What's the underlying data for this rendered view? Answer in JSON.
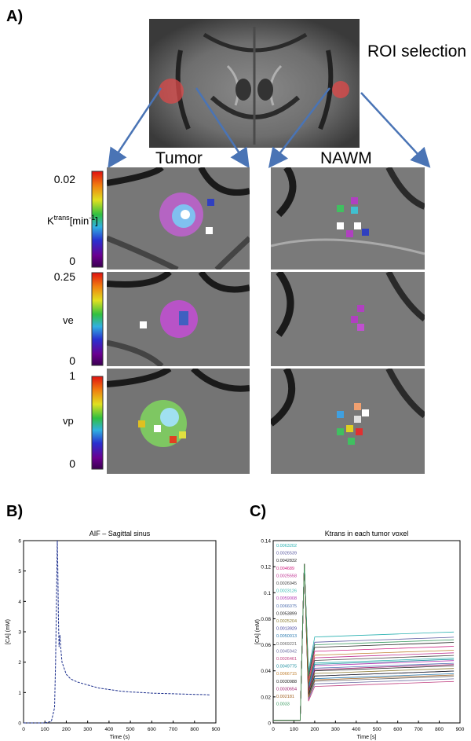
{
  "panel_labels": {
    "a": "A)",
    "b": "B)",
    "c": "C)"
  },
  "roi_label": "ROI selection",
  "col_headers": {
    "tumor": "Tumor",
    "nawm": "NAWM"
  },
  "colorbars": [
    {
      "top": "0.02",
      "bottom": "0",
      "label_main": "K",
      "label_sup": "trans",
      "label_unit": "[min",
      "label_unit_sup": "-1",
      "label_close": "]"
    },
    {
      "top": "0.25",
      "bottom": "0",
      "label_main": "ve"
    },
    {
      "top": "1",
      "bottom": "0",
      "label_main": "vp"
    }
  ],
  "colors": {
    "arrow": "#4a74b5",
    "roi": "#d94a4a",
    "aif_line": "#1a2d8c"
  },
  "chart_data": [
    {
      "type": "line",
      "title": "AIF – Sagittal sinus",
      "xlabel": "Time (s)",
      "ylabel": "[CA] (mM)",
      "xlim": [
        0,
        900
      ],
      "ylim": [
        0,
        6
      ],
      "xticks": [
        "0",
        "100",
        "200",
        "300",
        "400",
        "500",
        "600",
        "700",
        "800",
        "900"
      ],
      "yticks": [
        "0",
        "1",
        "2",
        "3",
        "4",
        "5",
        "6"
      ],
      "series": [
        {
          "x": [
            0,
            50,
            100,
            130,
            145,
            150,
            155,
            158,
            160,
            163,
            166,
            170,
            175,
            180,
            190,
            200,
            220,
            250,
            300,
            350,
            400,
            450,
            500,
            550,
            600,
            650,
            700,
            750,
            800,
            850,
            870
          ],
          "y": [
            0,
            0,
            0,
            0.05,
            0.5,
            2,
            4.5,
            6,
            5.2,
            3.5,
            2.5,
            2.9,
            2.4,
            2.0,
            1.8,
            1.6,
            1.45,
            1.35,
            1.25,
            1.15,
            1.1,
            1.05,
            1.02,
            1.0,
            0.98,
            0.97,
            0.96,
            0.95,
            0.94,
            0.93,
            0.92
          ]
        }
      ]
    },
    {
      "type": "scatter",
      "title": "Ktrans in each tumor voxel",
      "xlabel": "Time [s]",
      "ylabel": "[CA] (mM)",
      "xlim": [
        0,
        900
      ],
      "ylim": [
        0,
        0.14
      ],
      "xticks": [
        "0",
        "100",
        "200",
        "300",
        "400",
        "500",
        "600",
        "700",
        "800",
        "900"
      ],
      "yticks": [
        "0",
        "0.02",
        "0.04",
        "0.06",
        "0.08",
        "0.1",
        "0.12",
        "0.14"
      ],
      "legend_entries": [
        "0.0063202",
        "0.0026539",
        "0.0042832",
        "0.004689",
        "0.0025558",
        "0.0026945",
        "0.0023126",
        "0.0059008",
        "0.0066075",
        "0.0053899",
        "0.0025204",
        "0.0013929",
        "0.0050013",
        "0.0069221",
        "0.0045942",
        "0.0026461",
        "0.0049775",
        "0.0066715",
        "0.0030988",
        "0.0030654",
        "0.002181",
        "0.0033"
      ],
      "legend_colors": [
        "#28b0b0",
        "#5a5aa0",
        "#222222",
        "#d02080",
        "#c03090",
        "#444444",
        "#30b8b0",
        "#b030b0",
        "#5070b0",
        "#222222",
        "#8a7a30",
        "#3a3a9a",
        "#2a7ab0",
        "#666666",
        "#6a6aa0",
        "#c04080",
        "#2090a0",
        "#c08030",
        "#222222",
        "#a02070",
        "#a06020",
        "#3a9a60"
      ]
    }
  ]
}
